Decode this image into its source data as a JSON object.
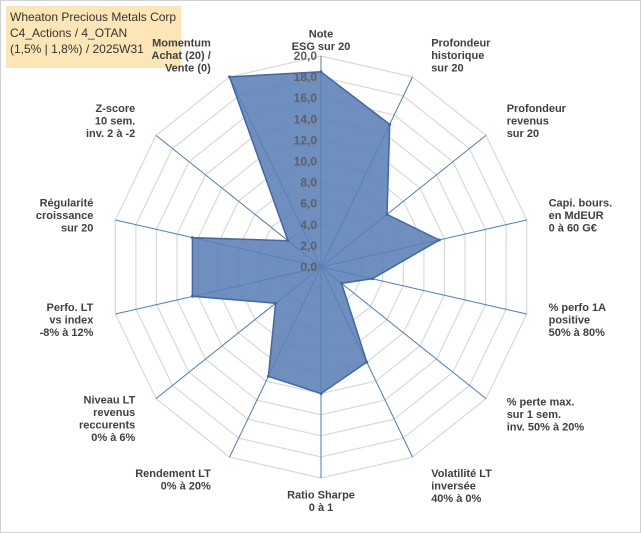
{
  "header": {
    "title_line1": "Wheaton Precious Metals Corp",
    "title_line2": "C4_Actions / 4_OTAN",
    "title_line3": "(1,5% | 1,8%) / 2025W31"
  },
  "chart_data": {
    "type": "radar",
    "rmin": 0,
    "rmax": 20,
    "step": 2,
    "tick_labels": [
      "0,0",
      "2,0",
      "4,0",
      "6,0",
      "8,0",
      "10,0",
      "12,0",
      "14,0",
      "16,0",
      "18,0",
      "20,0"
    ],
    "axes": [
      {
        "label": [
          "Note",
          "ESG sur 20"
        ],
        "value": 18.5
      },
      {
        "label": [
          "Profondeur",
          "historique",
          "sur 20"
        ],
        "value": 15.0
      },
      {
        "label": [
          "Profondeur",
          "revenus",
          "sur 20"
        ],
        "value": 8.0
      },
      {
        "label": [
          "Capi. bours.",
          "en MdEUR",
          "0 à 60 G€"
        ],
        "value": 11.5
      },
      {
        "label": [
          "% perfo 1A",
          "positive",
          "50% à 80%"
        ],
        "value": 5.0
      },
      {
        "label": [
          "% perte max.",
          "sur 1 sem.",
          "inv. 50% à 20%"
        ],
        "value": 2.5
      },
      {
        "label": [
          "Volatilité LT",
          "inversée",
          "40% à 0%"
        ],
        "value": 10.0
      },
      {
        "label": [
          "Ratio Sharpe",
          "0 à 1"
        ],
        "value": 12.0
      },
      {
        "label": [
          "Rendement LT",
          "0% à 20%"
        ],
        "value": 11.5
      },
      {
        "label": [
          "Niveau LT",
          "revenus",
          "reccurents",
          "0% à 6%"
        ],
        "value": 5.5
      },
      {
        "label": [
          "Perfo. LT",
          "vs index",
          "-8% à 12%"
        ],
        "value": 12.5
      },
      {
        "label": [
          "Régularité",
          "croissance",
          "sur 20"
        ],
        "value": 12.5
      },
      {
        "label": [
          "Z-score",
          "10 sem.",
          "inv. 2 à -2"
        ],
        "value": 4.0
      },
      {
        "label": [
          "Momentum",
          "Achat (20) /",
          "Vente (0)"
        ],
        "value": 20.0
      }
    ],
    "colors": {
      "fill": "#5b7fb5",
      "stroke": "#3f68a8",
      "grid": "#d9d9d9",
      "spokes": "#4a7cc0"
    }
  }
}
